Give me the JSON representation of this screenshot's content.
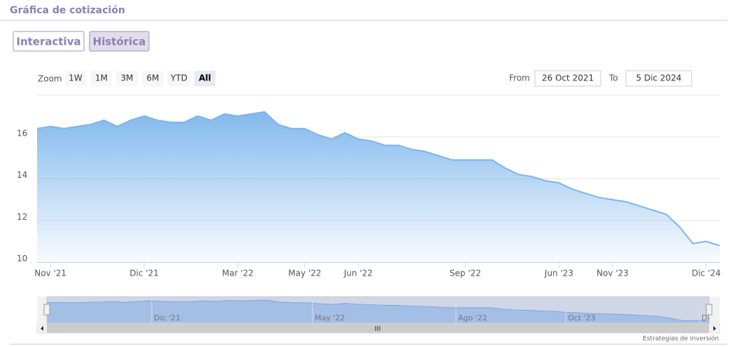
{
  "header": {
    "title": "Gráfica de cotización"
  },
  "tabs": [
    "Interactiva",
    "Histórica"
  ],
  "zoom": {
    "label": "Zoom",
    "buttons": [
      "1W",
      "1M",
      "3M",
      "6M",
      "YTD",
      "All"
    ]
  },
  "range": {
    "from_label": "From",
    "from": "26 Oct 2021",
    "to_label": "To",
    "to": "5 Dic 2024"
  },
  "chart_data": {
    "type": "area",
    "categories": [
      null,
      "Nov '21",
      null,
      null,
      null,
      null,
      null,
      null,
      "Dic '21",
      null,
      null,
      null,
      null,
      null,
      null,
      "Mar '22",
      null,
      null,
      null,
      null,
      "May '22",
      null,
      null,
      null,
      "Jun '22",
      null,
      null,
      null,
      null,
      null,
      null,
      null,
      "Sep '22",
      null,
      null,
      null,
      null,
      null,
      null,
      "Jun '23",
      null,
      null,
      null,
      "Nov '23",
      null,
      null,
      null,
      null,
      null,
      null,
      "Dic '24",
      null
    ],
    "values": [
      16.4,
      16.5,
      16.4,
      16.5,
      16.6,
      16.8,
      16.5,
      16.8,
      17.0,
      16.8,
      16.7,
      16.7,
      17.0,
      16.8,
      17.1,
      17.0,
      17.1,
      17.2,
      16.6,
      16.4,
      16.4,
      16.1,
      15.9,
      16.2,
      15.9,
      15.8,
      15.6,
      15.6,
      15.4,
      15.3,
      15.1,
      14.9,
      14.9,
      14.9,
      14.9,
      14.5,
      14.2,
      14.1,
      13.9,
      13.8,
      13.5,
      13.3,
      13.1,
      13.0,
      12.9,
      12.7,
      12.5,
      12.3,
      11.7,
      10.9,
      11.0,
      10.8
    ],
    "color": "#7cb5ec",
    "ylim": [
      10,
      18
    ],
    "yticks": [
      10,
      12,
      14,
      16
    ],
    "grid": true
  },
  "navigator": {
    "labels": [
      "Dic '21",
      "May '22",
      "Ago '22",
      "Oct '23",
      "Di"
    ]
  },
  "credits": "Estrategias de Inversión"
}
